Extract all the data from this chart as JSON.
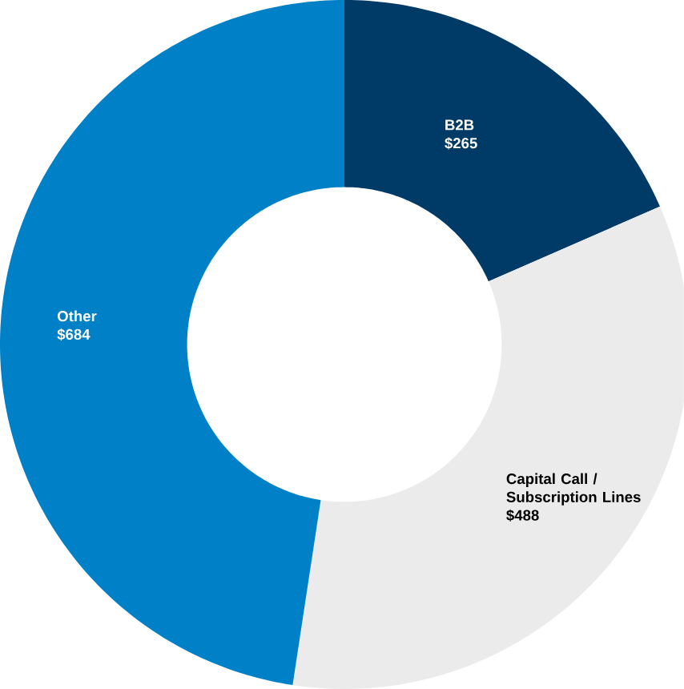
{
  "chart_data": {
    "type": "donut",
    "categories": [
      "B2B",
      "Capital Call / Subscription Lines",
      "Other"
    ],
    "values": [
      265,
      488,
      684
    ],
    "value_labels": [
      "$265",
      "$488",
      "$684"
    ],
    "colors": [
      "#003a66",
      "#ebebeb",
      "#0080c6"
    ]
  }
}
